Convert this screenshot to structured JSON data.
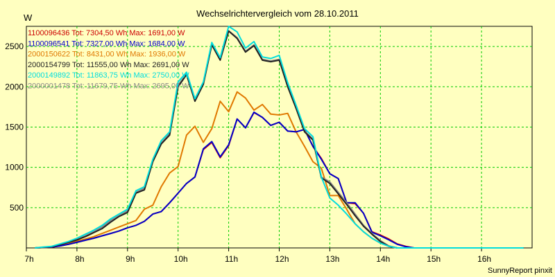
{
  "chart_data": {
    "type": "line",
    "title": "Wechselrichtervergleich vom 28.10.2011",
    "ylabel": "W",
    "footer": "SunnyReport pinxit",
    "xlim": [
      7,
      17
    ],
    "ylim": [
      0,
      2750
    ],
    "x_ticks": [
      7,
      8,
      9,
      10,
      11,
      12,
      13,
      14,
      15,
      16
    ],
    "x_tick_labels": [
      "7h",
      "8h",
      "9h",
      "10h",
      "11h",
      "12h",
      "13h",
      "14h",
      "15h",
      "16h"
    ],
    "y_ticks": [
      500,
      1000,
      1500,
      2000,
      2500
    ],
    "y_tick_labels": [
      "500",
      "1000",
      "1500",
      "2000",
      "2500"
    ],
    "grid": true,
    "legend_position": "top-left",
    "x": [
      7.167,
      7.333,
      7.5,
      7.667,
      7.833,
      8.0,
      8.167,
      8.333,
      8.5,
      8.667,
      8.833,
      9.0,
      9.167,
      9.333,
      9.5,
      9.667,
      9.833,
      10.0,
      10.167,
      10.333,
      10.5,
      10.667,
      10.833,
      11.0,
      11.167,
      11.333,
      11.5,
      11.667,
      11.833,
      12.0,
      12.167,
      12.333,
      12.5,
      12.667,
      12.833,
      13.0,
      13.167,
      13.333,
      13.5,
      13.667,
      13.833,
      14.0,
      14.167,
      14.333,
      14.5,
      14.667,
      14.833,
      15.0,
      15.167,
      15.333,
      15.5,
      15.667,
      15.833,
      16.0,
      16.167,
      16.333,
      16.5,
      16.667,
      16.833
    ],
    "series": [
      {
        "name": "1100096436",
        "legend": "1100096436 Tot: 7304,50 Wh Max: 1691,00 W",
        "color": "#cc0000",
        "values": [
          0,
          5,
          10,
          25,
          45,
          70,
          95,
          120,
          150,
          180,
          210,
          250,
          280,
          330,
          420,
          450,
          560,
          680,
          800,
          880,
          1220,
          1310,
          1120,
          1270,
          1600,
          1490,
          1680,
          1620,
          1520,
          1560,
          1450,
          1440,
          1470,
          1260,
          1110,
          920,
          860,
          560,
          550,
          430,
          200,
          160,
          110,
          50,
          20,
          0,
          0,
          0,
          0,
          0,
          0,
          0,
          0,
          0,
          0,
          0,
          0,
          0,
          0
        ]
      },
      {
        "name": "1100096541",
        "legend": "1100096541 Tot: 7327,00 Wh Max: 1684,00 W",
        "color": "#0000cc",
        "values": [
          0,
          5,
          10,
          25,
          45,
          70,
          95,
          120,
          150,
          180,
          210,
          250,
          280,
          330,
          420,
          450,
          560,
          680,
          800,
          880,
          1230,
          1320,
          1130,
          1280,
          1600,
          1490,
          1684,
          1620,
          1520,
          1560,
          1450,
          1440,
          1470,
          1260,
          1100,
          920,
          860,
          560,
          560,
          430,
          195,
          150,
          100,
          45,
          15,
          0,
          0,
          0,
          0,
          0,
          0,
          0,
          0,
          0,
          0,
          0,
          0,
          0,
          0
        ]
      },
      {
        "name": "2000150622",
        "legend": "2000150622 Tot: 8431,00 Wh Max: 1936,00 W",
        "color": "#e07800",
        "values": [
          0,
          5,
          10,
          30,
          55,
          85,
          110,
          140,
          180,
          220,
          260,
          300,
          340,
          480,
          530,
          760,
          930,
          1010,
          1400,
          1510,
          1310,
          1480,
          1820,
          1690,
          1936,
          1860,
          1710,
          1780,
          1660,
          1650,
          1670,
          1440,
          1260,
          1070,
          990,
          650,
          650,
          480,
          300,
          200,
          120,
          60,
          20,
          0,
          0,
          0,
          0,
          0,
          0,
          0,
          0,
          0,
          0,
          0,
          0,
          0,
          0,
          0,
          0
        ]
      },
      {
        "name": "2000154799",
        "legend": "2000154799 Tot: 11555,00 Wh Max: 2691,00 W",
        "color": "#222222",
        "values": [
          0,
          5,
          15,
          40,
          70,
          100,
          140,
          190,
          240,
          320,
          390,
          440,
          680,
          720,
          1070,
          1290,
          1400,
          2000,
          2150,
          1820,
          2030,
          2520,
          2330,
          2691,
          2600,
          2430,
          2510,
          2330,
          2310,
          2330,
          2000,
          1730,
          1440,
          1340,
          870,
          800,
          670,
          540,
          400,
          270,
          170,
          80,
          20,
          0,
          0,
          0,
          0,
          0,
          0,
          0,
          0,
          0,
          0,
          0,
          0,
          0,
          0,
          0,
          0
        ]
      },
      {
        "name": "2000149892",
        "legend": "2000149892 Tot: 11863,75 Wh Max: 2750,00 W",
        "color": "#00dddd",
        "values": [
          0,
          10,
          20,
          50,
          80,
          120,
          170,
          220,
          280,
          360,
          420,
          480,
          710,
          760,
          1100,
          1330,
          1440,
          2060,
          2180,
          1850,
          2060,
          2550,
          2360,
          2750,
          2680,
          2480,
          2560,
          2370,
          2350,
          2390,
          2050,
          1770,
          1480,
          1380,
          880,
          620,
          530,
          420,
          300,
          200,
          120,
          60,
          20,
          0,
          0,
          0,
          0,
          0,
          0,
          0,
          0,
          0,
          0,
          0,
          0,
          0,
          0,
          0,
          0
        ]
      },
      {
        "name": "2000001478",
        "legend": "2000001478 Tot: 11679,75 Wh Max: 2695,00 W",
        "color": "#888888",
        "values": [
          0,
          8,
          18,
          45,
          75,
          110,
          150,
          200,
          260,
          340,
          400,
          460,
          690,
          740,
          1080,
          1300,
          1420,
          2020,
          2160,
          1830,
          2040,
          2530,
          2340,
          2695,
          2610,
          2440,
          2520,
          2340,
          2320,
          2340,
          2010,
          1740,
          1450,
          1350,
          880,
          820,
          690,
          560,
          420,
          280,
          180,
          90,
          25,
          0,
          0,
          0,
          0,
          0,
          0,
          0,
          0,
          0,
          0,
          0,
          0,
          0,
          0,
          0,
          0
        ]
      }
    ]
  }
}
